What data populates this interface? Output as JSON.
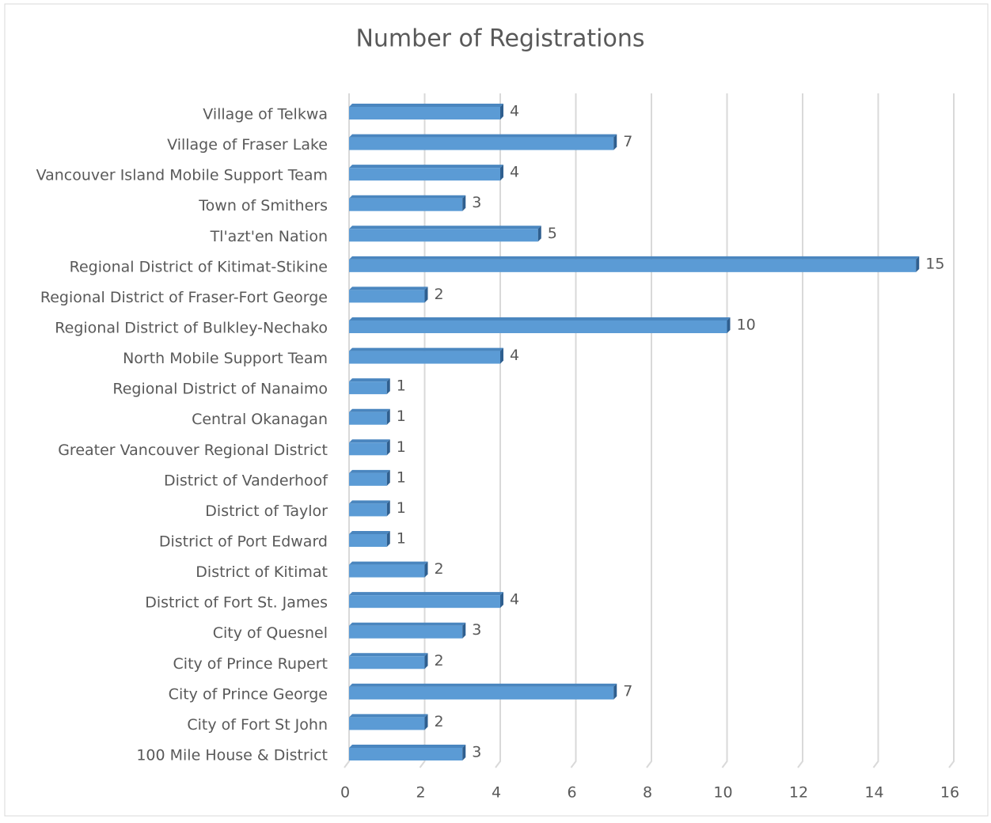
{
  "chart_data": {
    "type": "bar",
    "orientation": "horizontal",
    "title": "Number of Registrations",
    "categories": [
      "Village of Telkwa",
      "Village of Fraser Lake",
      "Vancouver Island Mobile Support Team",
      "Town of Smithers",
      "Tl'azt'en Nation",
      "Regional District of Kitimat-Stikine",
      "Regional District of Fraser-Fort George",
      "Regional District of Bulkley-Nechako",
      "North Mobile Support Team",
      "Regional District of Nanaimo",
      "Central Okanagan",
      "Greater Vancouver Regional District",
      "District of Vanderhoof",
      "District of Taylor",
      "District of Port Edward",
      "District of Kitimat",
      "District of Fort St. James",
      "City of Quesnel",
      "City of Prince Rupert",
      "City of Prince George",
      "City of Fort St John",
      "100 Mile House & District"
    ],
    "values": [
      4,
      7,
      4,
      3,
      5,
      15,
      2,
      10,
      4,
      1,
      1,
      1,
      1,
      1,
      1,
      2,
      4,
      3,
      2,
      7,
      2,
      3
    ],
    "color": "#5b9bd5",
    "xlim": [
      0,
      16
    ],
    "xticks": [
      0,
      2,
      4,
      6,
      8,
      10,
      12,
      14,
      16
    ],
    "grid": true,
    "data_labels": true
  }
}
